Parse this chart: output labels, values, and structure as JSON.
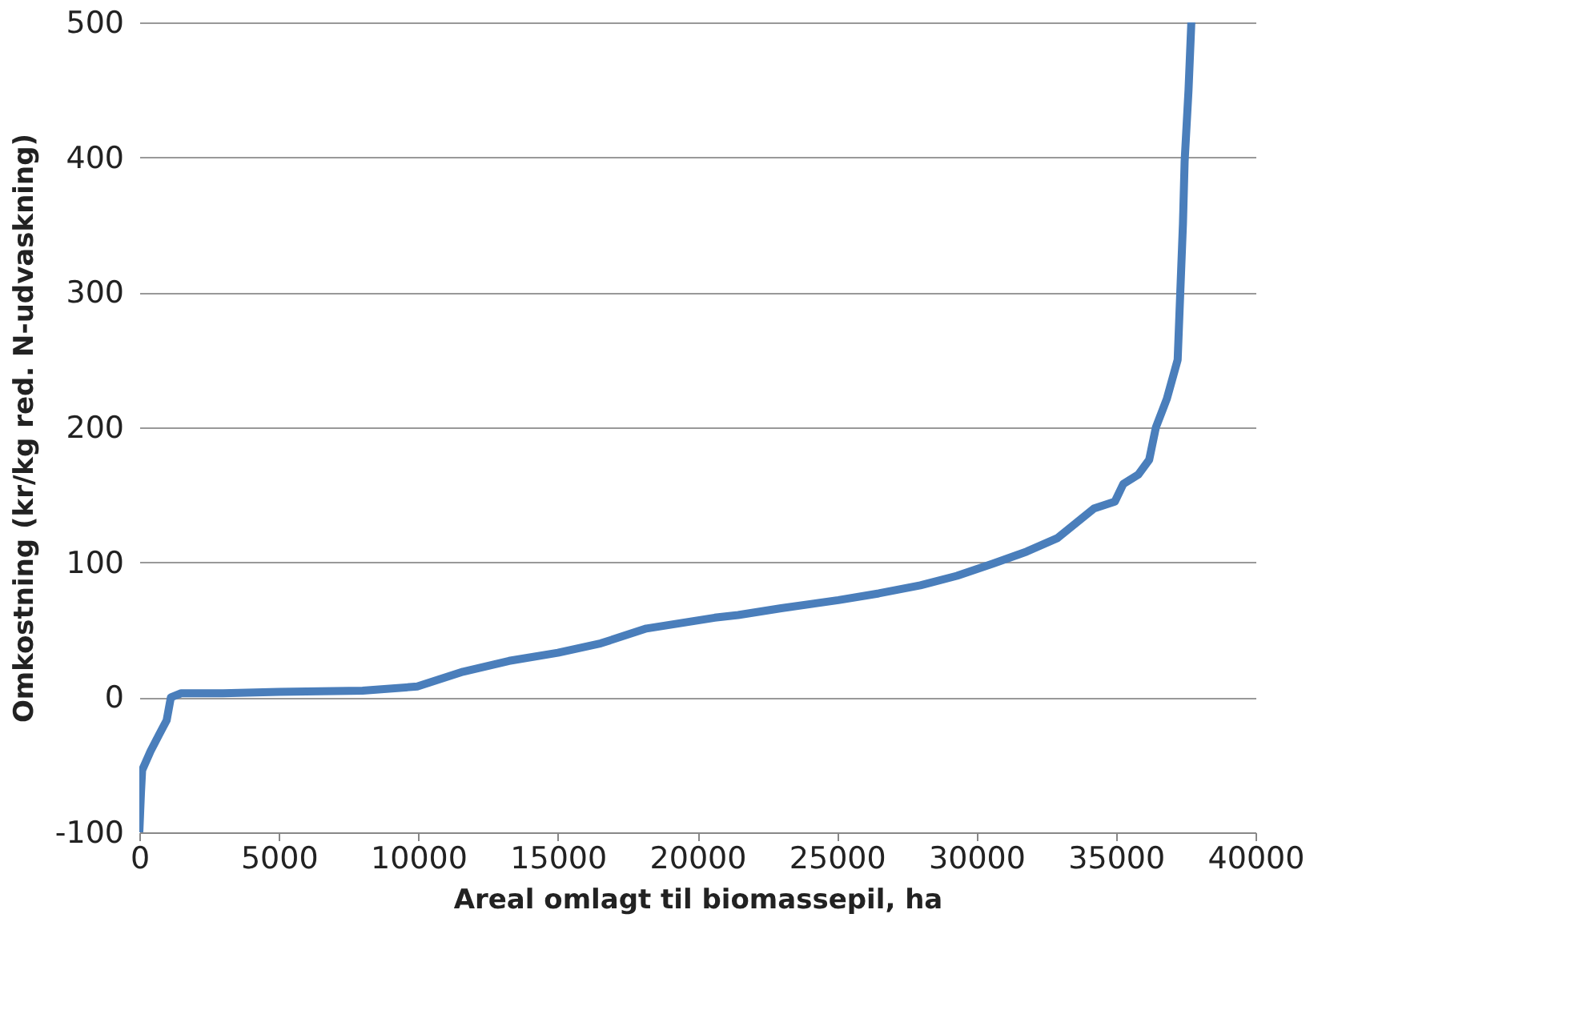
{
  "chart_data": {
    "type": "line",
    "xlabel": "Areal omlagt til biomassepil, ha",
    "ylabel": "Omkostning  (kr/kg red. N-udvaskning)",
    "x": [
      0,
      60,
      100,
      400,
      700,
      980,
      1130,
      1500,
      3000,
      5000,
      8000,
      9960,
      11600,
      13250,
      15000,
      16540,
      18170,
      20620,
      21460,
      23000,
      25050,
      26500,
      27990,
      29300,
      30590,
      31800,
      32900,
      34220,
      34960,
      35260,
      35800,
      36190,
      36430,
      36820,
      37210,
      37300,
      37400,
      37460,
      37600,
      37700
    ],
    "series": [
      {
        "color": "#4a7ebb",
        "values": [
          -100,
          -70,
          -54,
          -40,
          -28,
          -17,
          0,
          3,
          3,
          4,
          5,
          8,
          19,
          27,
          33,
          40,
          51,
          59,
          61,
          66,
          72,
          77,
          83,
          90,
          99,
          108,
          118,
          140,
          145,
          158,
          165,
          176,
          200,
          221,
          250,
          298,
          351,
          397,
          450,
          500
        ]
      }
    ],
    "xlim": [
      0,
      40000
    ],
    "ylim": [
      -100,
      500
    ],
    "xticks": [
      0,
      5000,
      10000,
      15000,
      20000,
      25000,
      30000,
      35000,
      40000
    ],
    "yticks": [
      -100,
      0,
      100,
      200,
      300,
      400,
      500
    ],
    "grid": "y",
    "legend": false,
    "marker": "none",
    "line_style": "solid"
  }
}
